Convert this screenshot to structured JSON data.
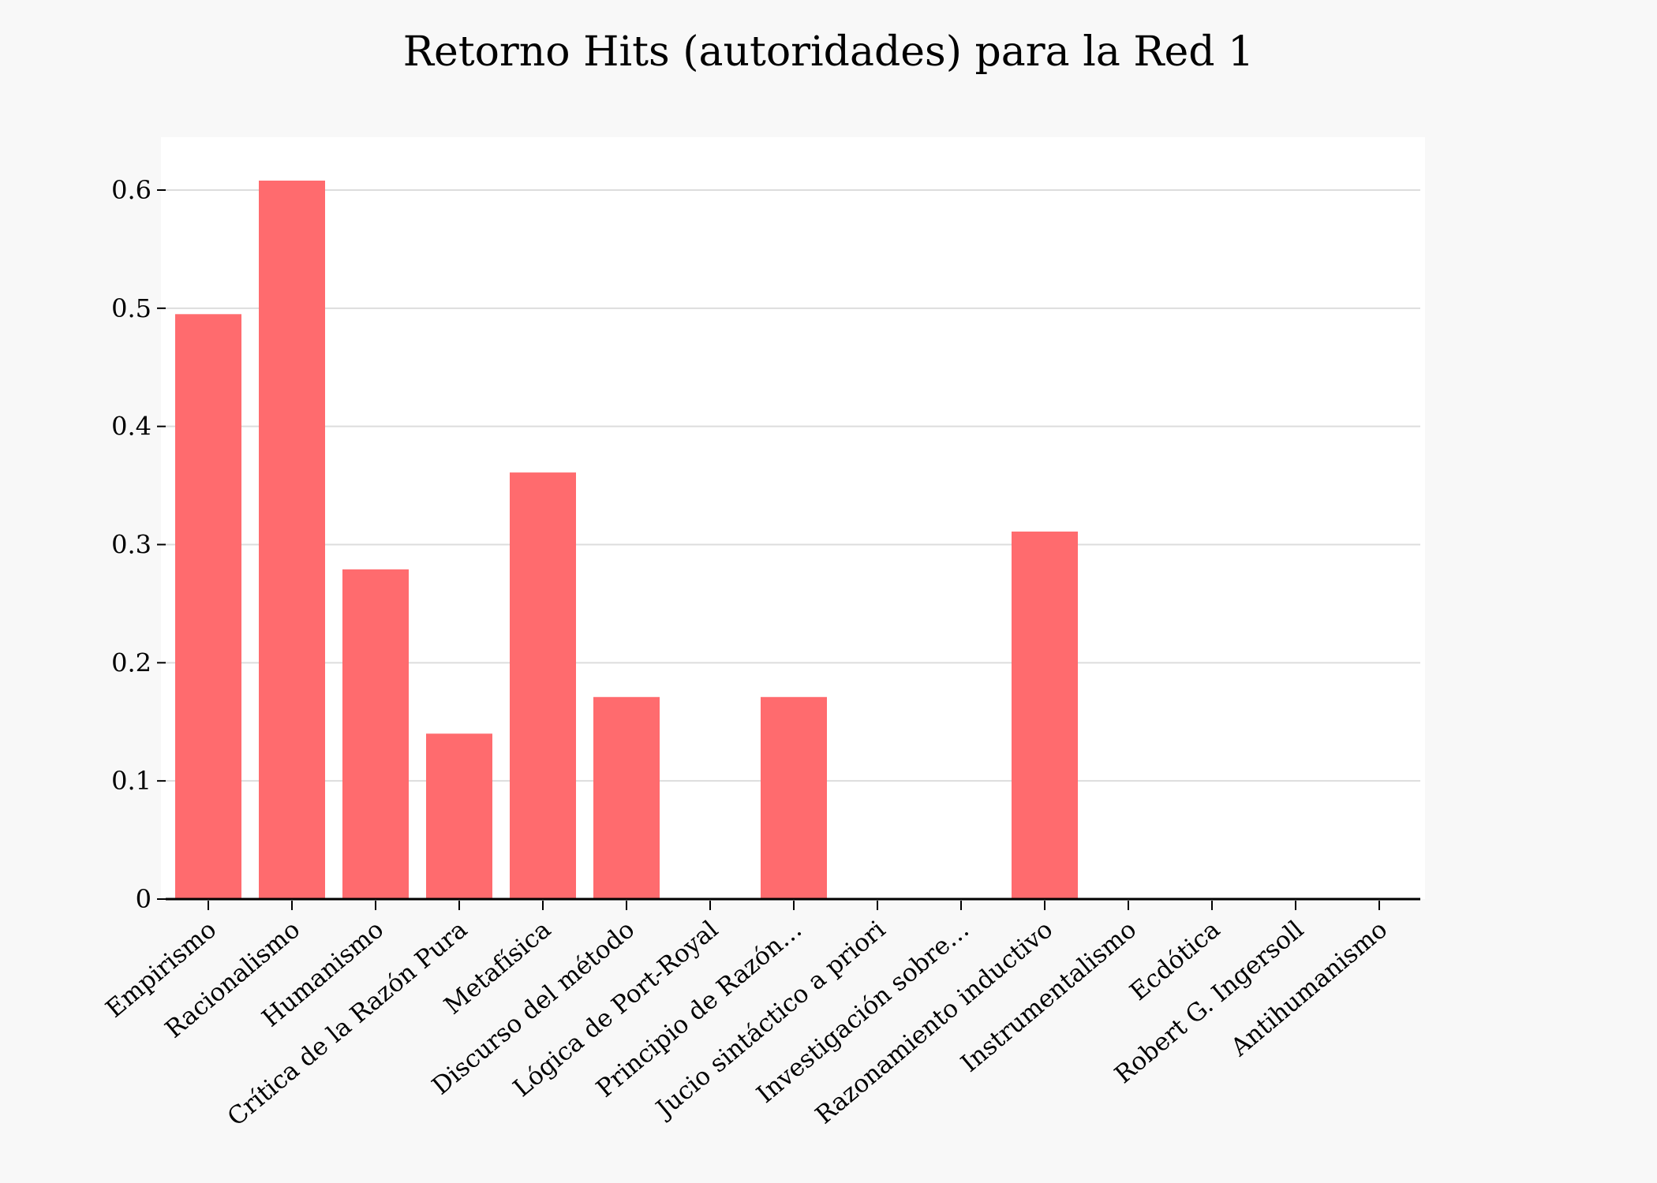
{
  "chart_data": {
    "type": "bar",
    "title": "Retorno Hits (autoridades) para la Red 1",
    "xlabel": "",
    "ylabel": "",
    "categories": [
      "Empirismo",
      "Racionalismo",
      "Humanismo",
      "Crítica de la Razón Pura",
      "Metafísica",
      "Discurso del método",
      "Lógica de Port-Royal",
      "Principio de Razón…",
      "Jucio sintáctico a priori",
      "Investigación sobre…",
      "Razonamiento inductivo",
      "Instrumentalismo",
      "Ecdótica",
      "Robert G. Ingersoll",
      "Antihumanismo"
    ],
    "values": [
      0.495,
      0.608,
      0.279,
      0.14,
      0.361,
      0.171,
      0,
      0.171,
      0,
      0,
      0.311,
      0,
      0,
      0,
      0
    ],
    "ylim": [
      0,
      0.645
    ],
    "yticks": [
      0,
      0.1,
      0.2,
      0.3,
      0.4,
      0.5,
      0.6
    ],
    "ytick_labels": [
      "0",
      "0.1",
      "0.2",
      "0.3",
      "0.4",
      "0.5",
      "0.6"
    ],
    "grid": true,
    "bar_color": "#ff6b6e",
    "plot_background": "#ffffff",
    "page_background": "#f8f8f8",
    "grid_color": "#dddddd"
  }
}
